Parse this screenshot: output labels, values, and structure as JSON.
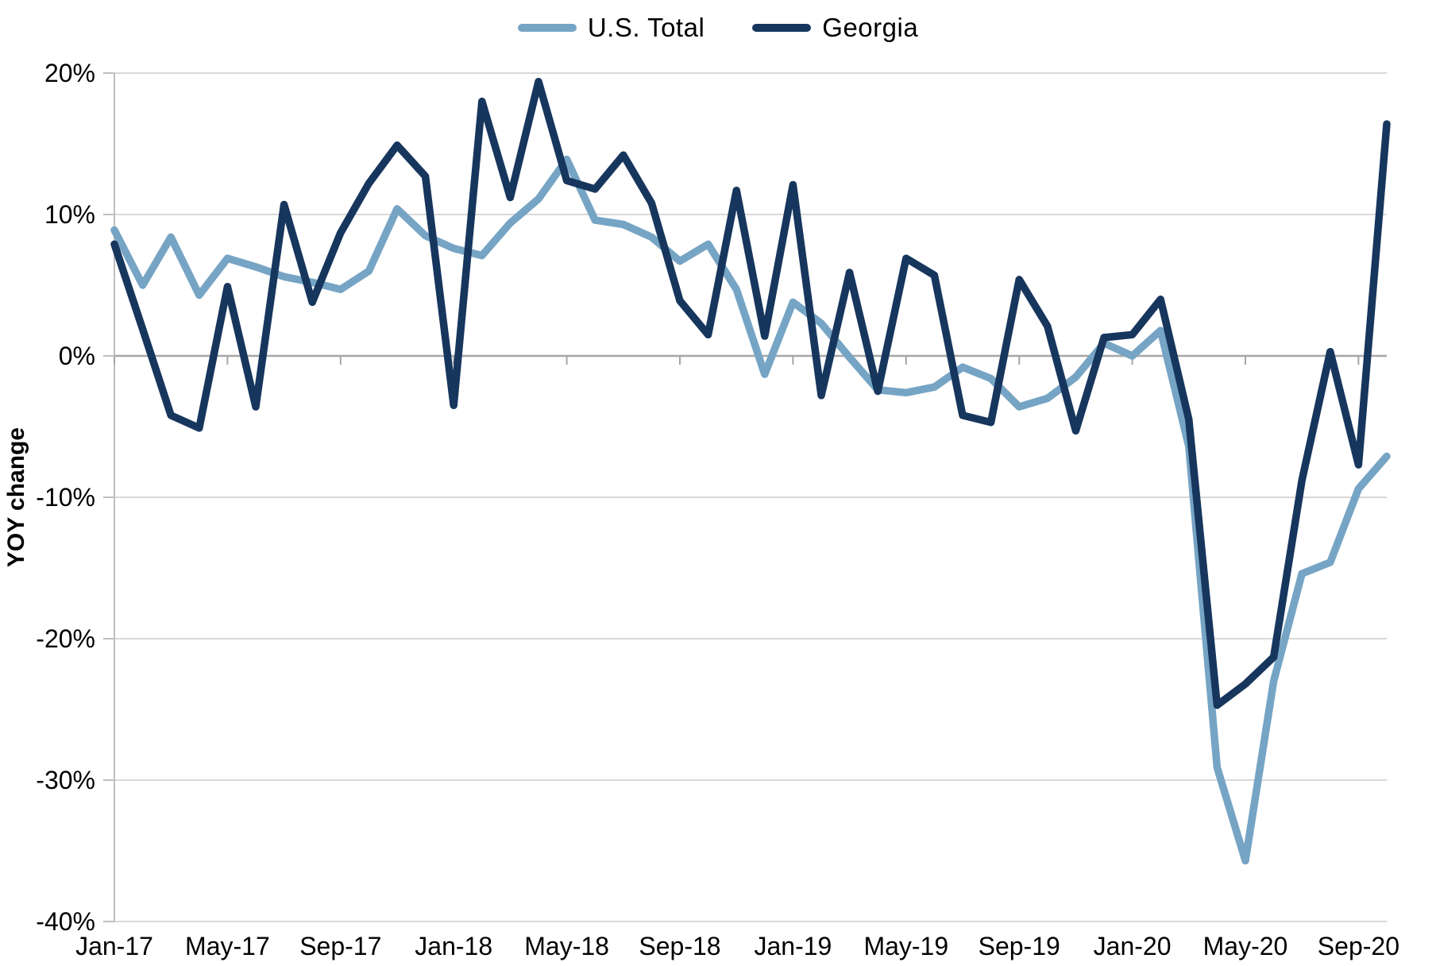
{
  "legend": {
    "position": "top",
    "items": [
      {
        "label": "U.S. Total",
        "color": "#76A4C4"
      },
      {
        "label": "Georgia",
        "color": "#17365D"
      }
    ]
  },
  "axis": {
    "ylabel": "YOY change"
  },
  "chart_data": {
    "type": "line",
    "title": "",
    "xlabel": "",
    "ylabel": "YOY change",
    "ylim": [
      -40,
      20
    ],
    "grid": "horizontal",
    "legend_position": "top",
    "y_tick_values": [
      20,
      10,
      0,
      -10,
      -20,
      -30,
      -40
    ],
    "y_tick_labels": [
      "20%",
      "10%",
      "0%",
      "-10%",
      "-20%",
      "-30%",
      "-40%"
    ],
    "x_tick_labels": [
      "Jan-17",
      "May-17",
      "Sep-17",
      "Jan-18",
      "May-18",
      "Sep-18",
      "Jan-19",
      "May-19",
      "Sep-19",
      "Jan-20",
      "May-20",
      "Sep-20"
    ],
    "x_tick_every": 4,
    "months": [
      "Jan-17",
      "Feb-17",
      "Mar-17",
      "Apr-17",
      "May-17",
      "Jun-17",
      "Jul-17",
      "Aug-17",
      "Sep-17",
      "Oct-17",
      "Nov-17",
      "Dec-17",
      "Jan-18",
      "Feb-18",
      "Mar-18",
      "Apr-18",
      "May-18",
      "Jun-18",
      "Jul-18",
      "Aug-18",
      "Sep-18",
      "Oct-18",
      "Nov-18",
      "Dec-18",
      "Jan-19",
      "Feb-19",
      "Mar-19",
      "Apr-19",
      "May-19",
      "Jun-19",
      "Jul-19",
      "Aug-19",
      "Sep-19",
      "Oct-19",
      "Nov-19",
      "Dec-19",
      "Jan-20",
      "Feb-20",
      "Mar-20",
      "Apr-20",
      "May-20",
      "Jun-20",
      "Jul-20",
      "Aug-20",
      "Sep-20",
      "Oct-20"
    ],
    "series": [
      {
        "name": "U.S. Total",
        "color": "#76A4C4",
        "values": [
          8.9,
          5.0,
          8.4,
          4.3,
          6.9,
          6.3,
          5.6,
          5.2,
          4.7,
          6.0,
          10.4,
          8.5,
          7.6,
          7.1,
          9.4,
          11.1,
          13.9,
          9.6,
          9.3,
          8.4,
          6.7,
          7.9,
          4.7,
          -1.3,
          3.8,
          2.3,
          -0.1,
          -2.4,
          -2.6,
          -2.2,
          -0.8,
          -1.6,
          -3.6,
          -3.0,
          -1.5,
          0.9,
          0.0,
          1.8,
          -6.4,
          -29.1,
          -35.7,
          -23.0,
          -15.4,
          -14.6,
          -9.4,
          -7.1
        ]
      },
      {
        "name": "Georgia",
        "color": "#17365D",
        "values": [
          7.9,
          1.9,
          -4.2,
          -5.1,
          4.9,
          -3.6,
          10.7,
          3.8,
          8.7,
          12.2,
          14.9,
          12.7,
          -3.5,
          18.0,
          11.2,
          19.4,
          12.4,
          11.8,
          14.2,
          10.8,
          3.9,
          1.5,
          11.7,
          1.4,
          12.1,
          -2.8,
          5.9,
          -2.5,
          6.9,
          5.7,
          -4.2,
          -4.7,
          5.4,
          2.1,
          -5.3,
          1.3,
          1.5,
          4.0,
          -4.5,
          -24.7,
          -23.2,
          -21.3,
          -8.8,
          0.3,
          -7.7,
          16.4
        ]
      }
    ],
    "colors": {
      "gridline": "#D9D9D9",
      "zero_line": "#A6A6A6",
      "axis_line": "#BFBFBF",
      "tick": "#A6A6A6",
      "label_text": "#000000"
    }
  }
}
